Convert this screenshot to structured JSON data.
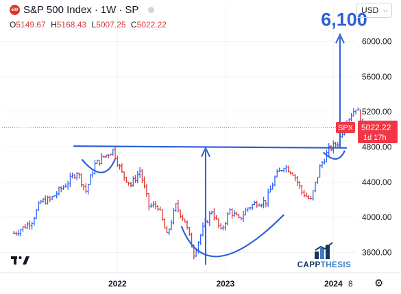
{
  "header": {
    "logo_text": "500",
    "title": "S&P 500 Index",
    "interval": "1W",
    "exchange": "SP",
    "separator": "·"
  },
  "ohlc": {
    "o_label": "O",
    "o_value": "5149.67",
    "h_label": "H",
    "h_value": "5168.43",
    "l_label": "L",
    "l_value": "5007.25",
    "c_label": "C",
    "c_value": "5022.22"
  },
  "currency": {
    "label": "USD"
  },
  "price_tag": {
    "symbol": "SPX",
    "price": "5022.22",
    "countdown": "1d 17h"
  },
  "annotation": {
    "target": "6,100"
  },
  "watermark": {
    "brand_a": "CAPP",
    "brand_b": "THESIS"
  },
  "footer": {
    "page_indicator": "8"
  },
  "colors": {
    "up": "#2962ff",
    "down": "#e0342e",
    "annotation": "#2d60d6",
    "tag_bg": "#f23645"
  },
  "icons": {
    "tv_logo": "tradingview-logo-icon",
    "settings": "gear-icon"
  },
  "chart_data": {
    "type": "line",
    "title": "S&P 500 Index · 1W · SP",
    "xlabel": "",
    "ylabel": "",
    "x_ticks": [
      "2022",
      "2023",
      "2024"
    ],
    "y_ticks": [
      "3600.00",
      "4000.00",
      "4400.00",
      "4800.00",
      "5200.00",
      "5600.00",
      "6000.00"
    ],
    "ylim": [
      3370,
      6410
    ],
    "xlim": [
      "2021-01",
      "2024-12"
    ],
    "grid": true,
    "series": [
      {
        "x": [
          "2021-01",
          "2021-02",
          "2021-03",
          "2021-04",
          "2021-05",
          "2021-06",
          "2021-07",
          "2021-08",
          "2021-09",
          "2021-10",
          "2021-11",
          "2021-12",
          "2022-01",
          "2022-02",
          "2022-03",
          "2022-04",
          "2022-05",
          "2022-06",
          "2022-07",
          "2022-08",
          "2022-09",
          "2022-10",
          "2022-11",
          "2022-12",
          "2023-01",
          "2023-02",
          "2023-03",
          "2023-04",
          "2023-05",
          "2023-06",
          "2023-07",
          "2023-08",
          "2023-09",
          "2023-10",
          "2023-11",
          "2023-12",
          "2024-01",
          "2024-02",
          "2024-03",
          "2024-04"
        ],
        "values": [
          3820,
          3880,
          3960,
          4180,
          4200,
          4300,
          4400,
          4520,
          4300,
          4600,
          4690,
          4766,
          4500,
          4370,
          4530,
          4130,
          4130,
          3790,
          4130,
          3960,
          3590,
          3870,
          4080,
          3840,
          4080,
          3970,
          4110,
          4170,
          4180,
          4450,
          4590,
          4510,
          4290,
          4190,
          4570,
          4770,
          4850,
          5100,
          5250,
          5022
        ]
      }
    ],
    "annotations": {
      "neckline": [
        4810,
        4790
      ],
      "target_label": "6,100",
      "last_price": "5022.22"
    }
  }
}
